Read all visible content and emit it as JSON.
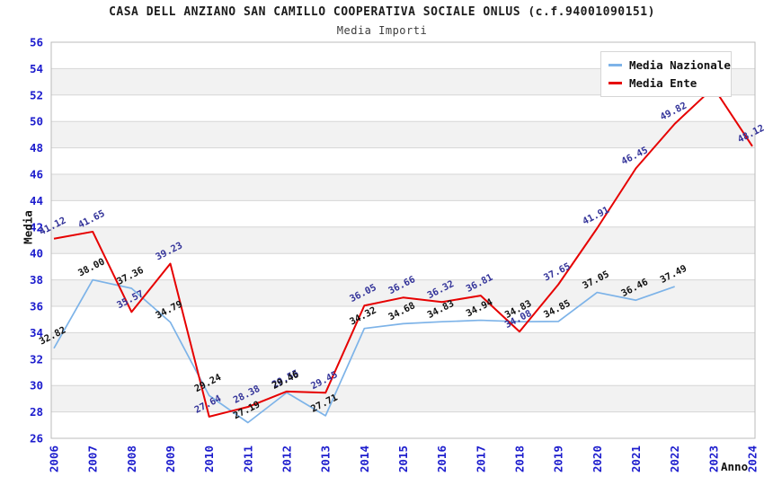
{
  "header": {
    "title": "CASA DELL ANZIANO SAN CAMILLO COOPERATIVA SOCIALE ONLUS (c.f.94001090151)",
    "subtitle": "Media Importi"
  },
  "chart_data": {
    "type": "line",
    "title": "CASA DELL ANZIANO SAN CAMILLO COOPERATIVA SOCIALE ONLUS (c.f.94001090151)",
    "subtitle": "Media Importi",
    "xlabel": "Anno",
    "ylabel": "Media",
    "x": [
      2006,
      2007,
      2008,
      2009,
      2010,
      2011,
      2012,
      2013,
      2014,
      2015,
      2016,
      2017,
      2018,
      2019,
      2020,
      2021,
      2022,
      2023,
      2024
    ],
    "ylim": [
      26,
      56
    ],
    "ytick_step": 2,
    "grid": "horizontal-bands",
    "legend_position": "top-right",
    "series": [
      {
        "name": "Media Nazionale",
        "color": "#7db3e8",
        "label_color": "#111111",
        "values": [
          32.82,
          38.0,
          37.36,
          34.79,
          29.24,
          27.19,
          29.46,
          27.71,
          34.32,
          34.68,
          34.83,
          34.94,
          34.83,
          34.85,
          37.05,
          36.46,
          37.49,
          null,
          null
        ]
      },
      {
        "name": "Media Ente",
        "color": "#e60000",
        "label_color": "#333399",
        "values": [
          41.12,
          41.65,
          35.57,
          39.23,
          27.64,
          28.38,
          29.55,
          29.45,
          36.05,
          36.66,
          36.32,
          36.81,
          34.08,
          37.65,
          41.91,
          46.45,
          49.82,
          52.57,
          48.12
        ]
      }
    ],
    "colors": {
      "tick_label": "#1c1ccd",
      "band_gray": "#f2f2f2",
      "gridline": "#d6d6d6",
      "plot_border": "#bbbbbb"
    }
  }
}
